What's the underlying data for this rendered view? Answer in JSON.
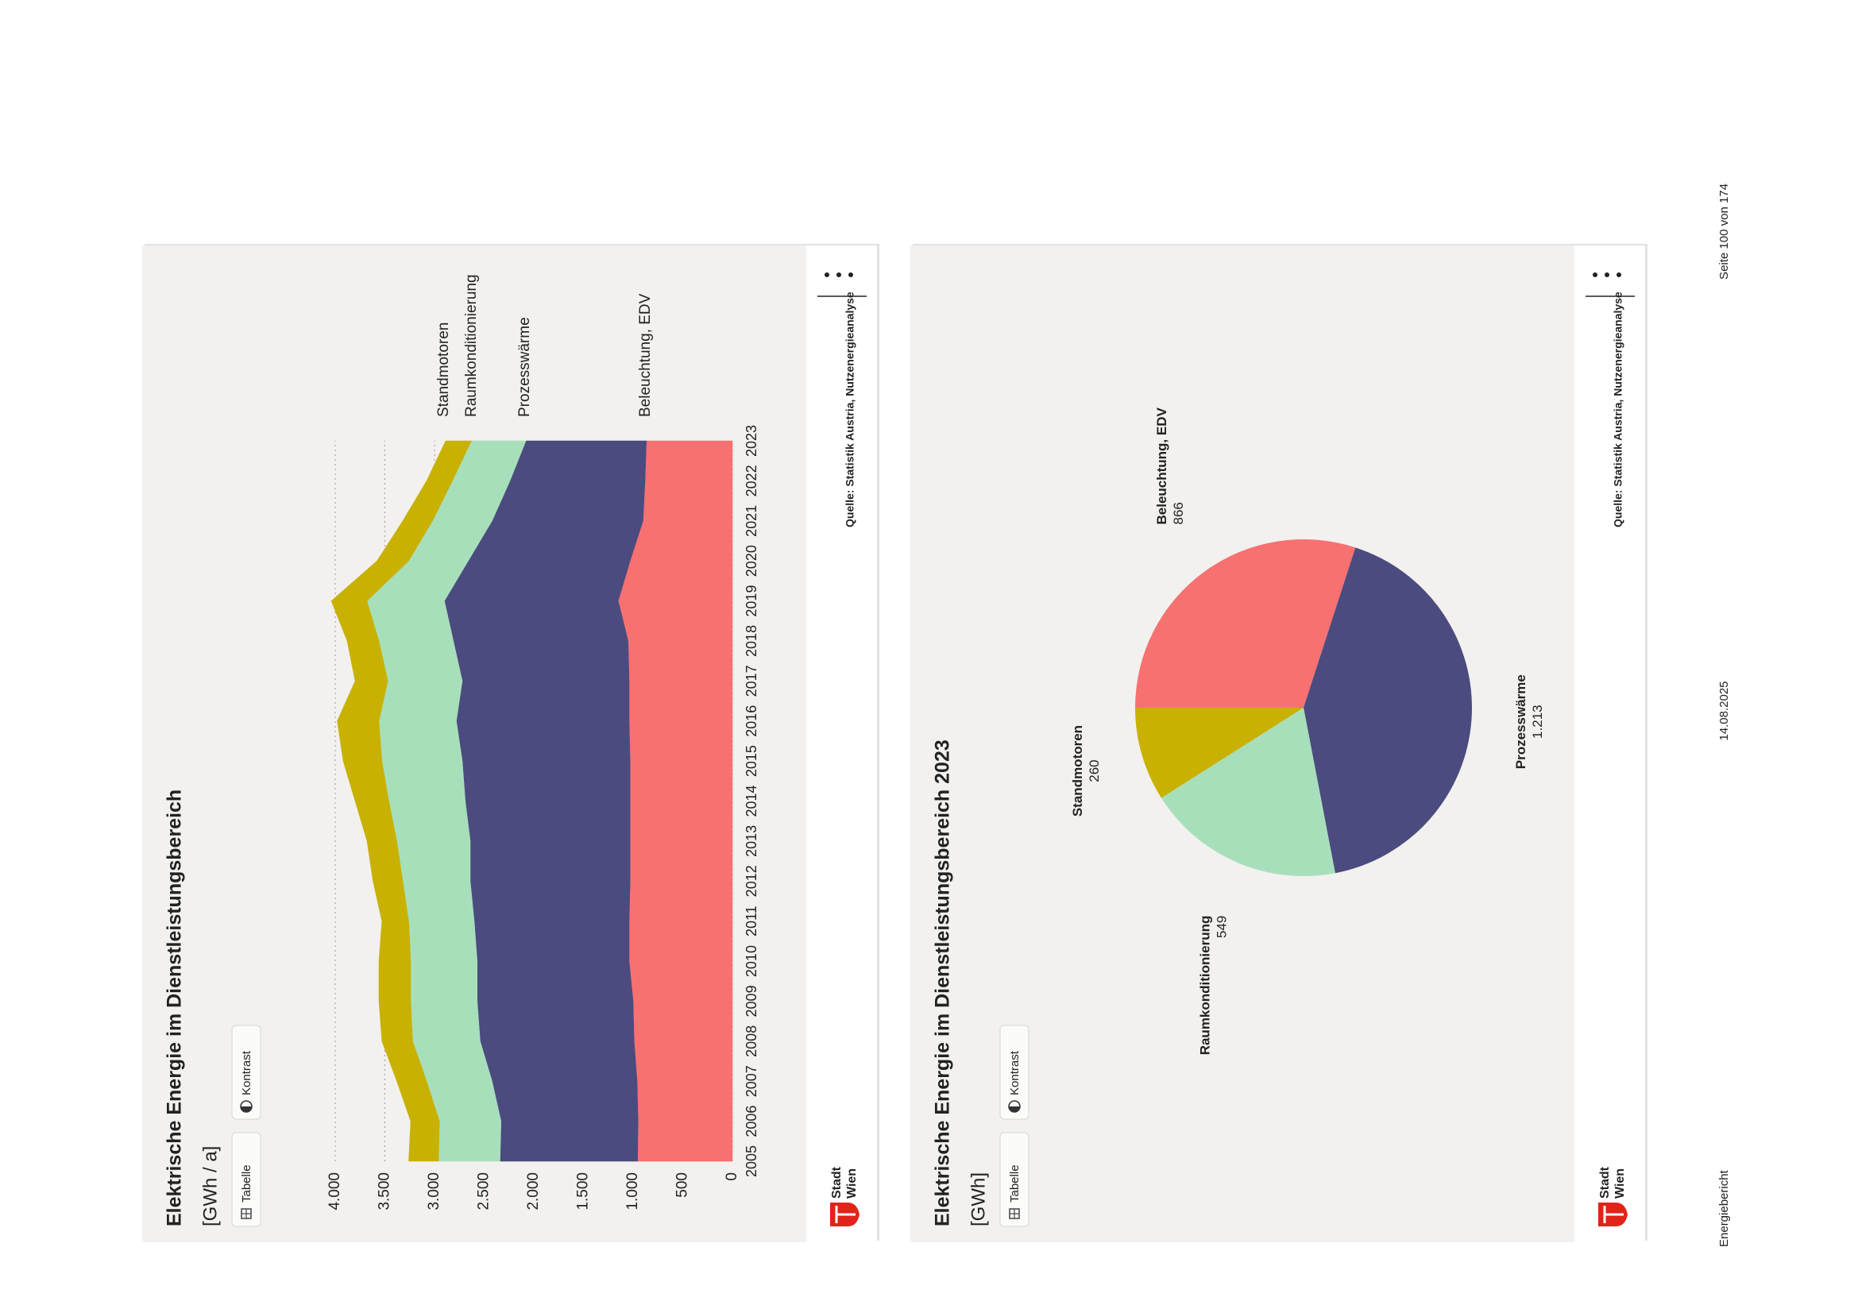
{
  "page": {
    "footer": [
      "Energiebericht",
      "14.08.2025",
      "Seite 100 von 174"
    ]
  },
  "chart_data": [
    {
      "type": "area",
      "stacked": true,
      "title": "Elektrische Energie im Dienstleistungsbereich",
      "subtitle": "[GWh / a]",
      "buttons": [
        "Tabelle",
        "Kontrast"
      ],
      "x": [
        2005,
        2006,
        2007,
        2008,
        2009,
        2010,
        2011,
        2012,
        2013,
        2014,
        2015,
        2016,
        2017,
        2018,
        2019,
        2020,
        2021,
        2022,
        2023
      ],
      "xlim": [
        2005,
        2023
      ],
      "ylim": [
        0,
        4000
      ],
      "yticks": [
        0,
        500,
        {
          "value": 1000,
          "label": "1.000"
        },
        {
          "value": 1500,
          "label": "1.500"
        },
        {
          "value": 2000,
          "label": "2.000"
        },
        {
          "value": 2500,
          "label": "2.500"
        },
        {
          "value": 3000,
          "label": "3.000"
        },
        {
          "value": 3500,
          "label": "3.500"
        },
        {
          "value": 4000,
          "label": "4.000"
        }
      ],
      "grid": true,
      "series": [
        {
          "name": "Beleuchtung, EDV",
          "color": "#f87171",
          "values": [
            955,
            950,
            960,
            990,
            1000,
            1040,
            1040,
            1030,
            1030,
            1030,
            1030,
            1040,
            1040,
            1050,
            1150,
            1030,
            900,
            880,
            866
          ]
        },
        {
          "name": "Prozesswärme",
          "color": "#4b4b7f",
          "values": [
            1385,
            1380,
            1460,
            1550,
            1570,
            1530,
            1560,
            1610,
            1610,
            1660,
            1690,
            1740,
            1680,
            1760,
            1750,
            1630,
            1520,
            1360,
            1213
          ]
        },
        {
          "name": "Raumkonditionierung",
          "color": "#a8dfbb",
          "values": [
            620,
            620,
            660,
            680,
            670,
            670,
            660,
            680,
            740,
            770,
            810,
            780,
            750,
            750,
            780,
            600,
            600,
            580,
            549
          ]
        },
        {
          "name": "Standmotoren",
          "color": "#c8b100",
          "values": [
            300,
            290,
            300,
            310,
            320,
            320,
            270,
            300,
            300,
            340,
            390,
            420,
            330,
            320,
            360,
            320,
            300,
            260,
            260
          ]
        }
      ],
      "source": "Quelle: Statistik Austria, Nutzenergieanalyse",
      "logo": [
        "Stadt",
        "Wien"
      ]
    },
    {
      "type": "pie",
      "title": "Elektrische Energie im Dienstleistungsbereich 2023",
      "subtitle": "[GWh]",
      "buttons": [
        "Tabelle",
        "Kontrast"
      ],
      "categories": [
        "Beleuchtung, EDV",
        "Prozesswärme",
        "Raumkonditionierung",
        "Standmotoren"
      ],
      "values": [
        866,
        1213,
        549,
        260
      ],
      "value_labels": [
        "866",
        "1.213",
        "549",
        "260"
      ],
      "colors": [
        "#f87171",
        "#4b4b7f",
        "#a8dfbb",
        "#c8b100"
      ],
      "source": "Quelle: Statistik Austria, Nutzenergieanalyse",
      "logo": [
        "Stadt",
        "Wien"
      ]
    }
  ]
}
